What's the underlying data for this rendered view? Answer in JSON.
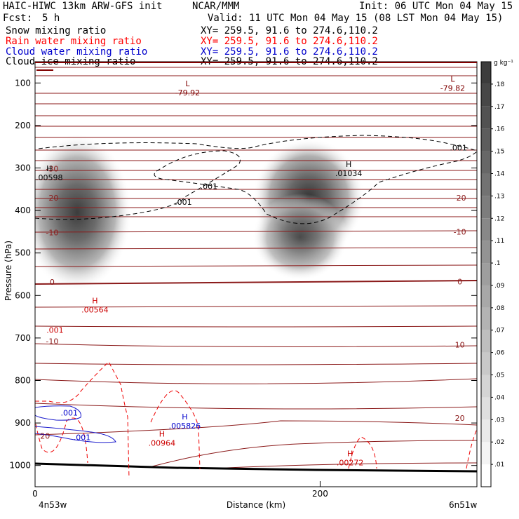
{
  "header": {
    "title": "HAIC-HIWC 13km ARW-GFS init",
    "center": "NCAR/MMM",
    "init": "Init: 06 UTC Mon 04 May 15",
    "fcst_label": "Fcst:",
    "fcst_value": "5 h",
    "valid": "Valid: 11 UTC Mon 04 May 15 (08 LST Mon 04 May 15)"
  },
  "fields": [
    {
      "name": "Snow mixing ratio",
      "xy": "XY= 259.5, 91.6 to 274.6,110.2",
      "color": "#000000"
    },
    {
      "name": "Rain water mixing ratio",
      "xy": "XY= 259.5, 91.6 to 274.6,110.2",
      "color": "#ff0000"
    },
    {
      "name": "Cloud water mixing ratio",
      "xy": "XY= 259.5, 91.6 to 274.6,110.2",
      "color": "#0000cc"
    },
    {
      "name": "Cloud ice mixing ratio",
      "xy": "XY= 259.5, 91.6 to 274.6,110.2",
      "color": "#000000"
    }
  ],
  "colorbar": {
    "unit": "g kg⁻¹",
    "ticks": [
      ".01",
      ".02",
      ".03",
      ".04",
      ".05",
      ".06",
      ".07",
      ".08",
      ".09",
      ".1",
      ".11",
      ".12",
      ".13",
      ".14",
      ".15",
      ".16",
      ".17",
      ".18"
    ]
  },
  "chart_data": {
    "type": "contour",
    "ylabel": "Pressure (hPa)",
    "xlabel": "Distance (km)",
    "x_ticks": [
      0,
      200
    ],
    "y_ticks": [
      100,
      200,
      300,
      400,
      500,
      600,
      700,
      800,
      900,
      1000
    ],
    "xlim": [
      0,
      310
    ],
    "ylim": [
      1050,
      50
    ],
    "x_left_label": "4n53w",
    "x_right_label": "6n51w",
    "snow_maxima": [
      {
        "x": 33,
        "p": 400,
        "max_gkg": 0.18
      },
      {
        "x": 195,
        "p": 420,
        "max_gkg": 0.18
      }
    ],
    "temperature_isotherm_labels": [
      {
        "text": "-30",
        "x": 12,
        "p": 302
      },
      {
        "text": "-20",
        "x": 12,
        "p": 370
      },
      {
        "text": "-10",
        "x": 12,
        "p": 452
      },
      {
        "text": "0",
        "x": 12,
        "p": 568
      },
      {
        "text": "-10",
        "x": 12,
        "p": 708
      },
      {
        "text": "20",
        "x": 7,
        "p": 930
      },
      {
        "text": "-20",
        "x": 298,
        "p": 370
      },
      {
        "text": "-10",
        "x": 298,
        "p": 450
      },
      {
        "text": "0",
        "x": 298,
        "p": 567
      },
      {
        "text": "10",
        "x": 298,
        "p": 716
      },
      {
        "text": "20",
        "x": 298,
        "p": 888
      }
    ],
    "contour_labels": [
      {
        "text": ".001",
        "x": 297,
        "p": 252,
        "color": "#000000"
      },
      {
        "text": ".001",
        "x": 122,
        "p": 343,
        "color": "#000000"
      },
      {
        "text": ".001",
        "x": 104,
        "p": 380,
        "color": "#000000"
      },
      {
        "text": ".001",
        "x": 14,
        "p": 681,
        "color": "#cc0000"
      },
      {
        "text": ".001",
        "x": 24,
        "p": 876,
        "color": "#0000cc"
      },
      {
        "text": ".001",
        "x": 33,
        "p": 934,
        "color": "#0000cc"
      }
    ],
    "extrema": [
      {
        "kind": "L",
        "value": "-79.92",
        "x": 107,
        "p": 114,
        "color": "#800000"
      },
      {
        "kind": "L",
        "value": "-79.82",
        "x": 293,
        "p": 104,
        "color": "#800000"
      },
      {
        "kind": "H",
        "value": ".00598",
        "x": 10,
        "p": 314,
        "color": "#000000"
      },
      {
        "kind": "H",
        "value": ".01034",
        "x": 220,
        "p": 304,
        "color": "#000000"
      },
      {
        "kind": "H",
        "value": ".00564",
        "x": 42,
        "p": 625,
        "color": "#cc0000"
      },
      {
        "kind": "H",
        "value": ".005826",
        "x": 105,
        "p": 898,
        "color": "#0000cc"
      },
      {
        "kind": "H",
        "value": ".00964",
        "x": 89,
        "p": 939,
        "color": "#cc0000"
      },
      {
        "kind": "H",
        "value": ".00272",
        "x": 221,
        "p": 985,
        "color": "#cc0000"
      }
    ]
  }
}
